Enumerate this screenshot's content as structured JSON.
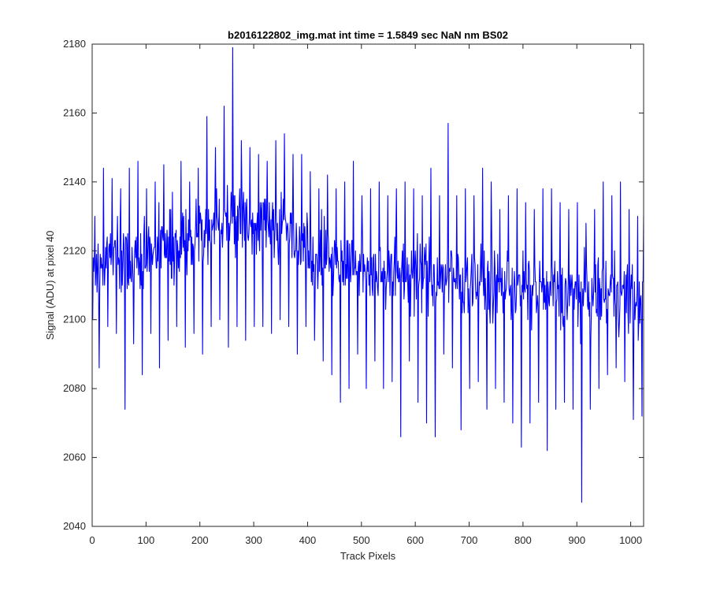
{
  "chart_data": {
    "type": "line",
    "title": "b2016122802_img.mat int time = 1.5849 sec  NaN nm BS02",
    "xlabel": "Track Pixels",
    "ylabel": "Signal (ADU) at pixel 40",
    "xlim": [
      0,
      1024
    ],
    "ylim": [
      2040,
      2180
    ],
    "xticks": [
      0,
      100,
      200,
      300,
      400,
      500,
      600,
      700,
      800,
      900,
      1000
    ],
    "yticks": [
      2040,
      2060,
      2080,
      2100,
      2120,
      2140,
      2160,
      2180
    ],
    "grid": false,
    "legend": "none",
    "line_color": "#0000ff",
    "series": [
      {
        "x": [
          0,
          16,
          32,
          48,
          64,
          80,
          96,
          112,
          128,
          144,
          160,
          176,
          192,
          208,
          224,
          240,
          256,
          272,
          288,
          304,
          320,
          336,
          352,
          368,
          384,
          400,
          416,
          432,
          448,
          464,
          480,
          496,
          512,
          528,
          544,
          560,
          576,
          592,
          608,
          624,
          640,
          656,
          672,
          688,
          704,
          720,
          736,
          752,
          768,
          784,
          800,
          816,
          832,
          848,
          864,
          880,
          896,
          912,
          928,
          944,
          960,
          976,
          992,
          1008,
          1024
        ],
        "y_mean": [
          2114,
          2116,
          2118,
          2119,
          2118,
          2117,
          2118,
          2119,
          2120,
          2121,
          2121,
          2122,
          2124,
          2126,
          2127,
          2130,
          2132,
          2130,
          2129,
          2128,
          2127,
          2128,
          2127,
          2126,
          2124,
          2122,
          2120,
          2119,
          2117,
          2116,
          2116,
          2115,
          2115,
          2115,
          2114,
          2114,
          2114,
          2113,
          2113,
          2113,
          2112,
          2113,
          2112,
          2111,
          2111,
          2111,
          2110,
          2110,
          2110,
          2109,
          2109,
          2108,
          2108,
          2108,
          2108,
          2108,
          2108,
          2107,
          2107,
          2108,
          2108,
          2108,
          2107,
          2104,
          2103
        ],
        "y_max": [
          2130,
          2144,
          2141,
          2138,
          2144,
          2146,
          2138,
          2140,
          2145,
          2137,
          2146,
          2140,
          2144,
          2159,
          2150,
          2162,
          2179,
          2152,
          2150,
          2148,
          2146,
          2152,
          2154,
          2148,
          2148,
          2143,
          2138,
          2142,
          2138,
          2140,
          2146,
          2136,
          2138,
          2140,
          2136,
          2138,
          2140,
          2138,
          2136,
          2144,
          2136,
          2157,
          2136,
          2138,
          2136,
          2144,
          2140,
          2132,
          2136,
          2138,
          2134,
          2132,
          2138,
          2138,
          2134,
          2132,
          2134,
          2128,
          2132,
          2140,
          2136,
          2140,
          2132,
          2130,
          2130
        ],
        "y_min": [
          2100,
          2086,
          2098,
          2096,
          2074,
          2093,
          2084,
          2096,
          2086,
          2094,
          2098,
          2092,
          2096,
          2090,
          2098,
          2100,
          2092,
          2098,
          2094,
          2098,
          2098,
          2096,
          2100,
          2098,
          2090,
          2098,
          2094,
          2088,
          2084,
          2076,
          2080,
          2090,
          2080,
          2088,
          2080,
          2082,
          2066,
          2088,
          2076,
          2070,
          2066,
          2090,
          2086,
          2068,
          2080,
          2082,
          2074,
          2080,
          2076,
          2070,
          2063,
          2070,
          2076,
          2062,
          2074,
          2076,
          2074,
          2047,
          2074,
          2080,
          2084,
          2086,
          2082,
          2071,
          2072
        ]
      }
    ]
  }
}
